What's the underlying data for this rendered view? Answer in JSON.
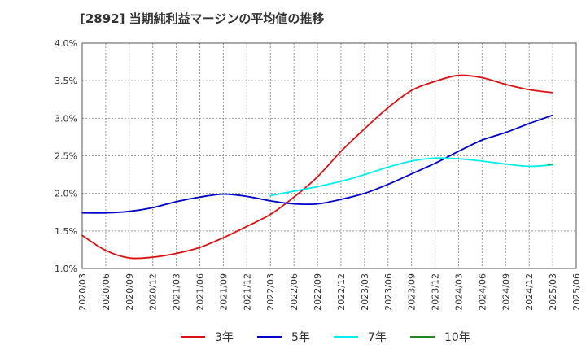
{
  "chart_data": {
    "type": "line",
    "title": "[2892]  当期純利益マージンの平均値の推移",
    "xlabel": "",
    "ylabel": "",
    "x": [
      "2020/03",
      "2020/06",
      "2020/09",
      "2020/12",
      "2021/03",
      "2021/06",
      "2021/09",
      "2021/12",
      "2022/03",
      "2022/06",
      "2022/09",
      "2022/12",
      "2023/03",
      "2023/06",
      "2023/09",
      "2023/12",
      "2024/03",
      "2024/06",
      "2024/09",
      "2024/12",
      "2025/03",
      "2025/06"
    ],
    "y_ticks": [
      "1.0%",
      "1.5%",
      "2.0%",
      "2.5%",
      "3.0%",
      "3.5%",
      "4.0%"
    ],
    "ylim": [
      1.0,
      4.0
    ],
    "y_unit": "%",
    "grid": true,
    "legend_position": "bottom",
    "series": [
      {
        "name": "3年",
        "color": "#dd1111",
        "values": [
          1.44,
          1.24,
          1.14,
          1.15,
          1.2,
          1.28,
          1.41,
          1.56,
          1.72,
          1.95,
          2.22,
          2.56,
          2.86,
          3.14,
          3.37,
          3.49,
          3.57,
          3.54,
          3.45,
          3.38,
          3.34,
          null
        ]
      },
      {
        "name": "5年",
        "color": "#0000cc",
        "values": [
          1.74,
          1.74,
          1.76,
          1.81,
          1.89,
          1.95,
          1.99,
          1.96,
          1.9,
          1.86,
          1.86,
          1.92,
          2.0,
          2.12,
          2.26,
          2.4,
          2.56,
          2.71,
          2.81,
          2.93,
          3.04,
          null
        ]
      },
      {
        "name": "7年",
        "color": "#00eeee",
        "values": [
          null,
          null,
          null,
          null,
          null,
          null,
          null,
          null,
          1.97,
          2.03,
          2.09,
          2.16,
          2.25,
          2.35,
          2.43,
          2.47,
          2.46,
          2.43,
          2.39,
          2.36,
          2.38,
          null
        ]
      },
      {
        "name": "10年",
        "color": "#228822",
        "values": [
          null,
          null,
          null,
          null,
          null,
          null,
          null,
          null,
          null,
          null,
          null,
          null,
          null,
          null,
          null,
          null,
          null,
          null,
          null,
          null,
          2.39,
          null
        ]
      }
    ]
  }
}
